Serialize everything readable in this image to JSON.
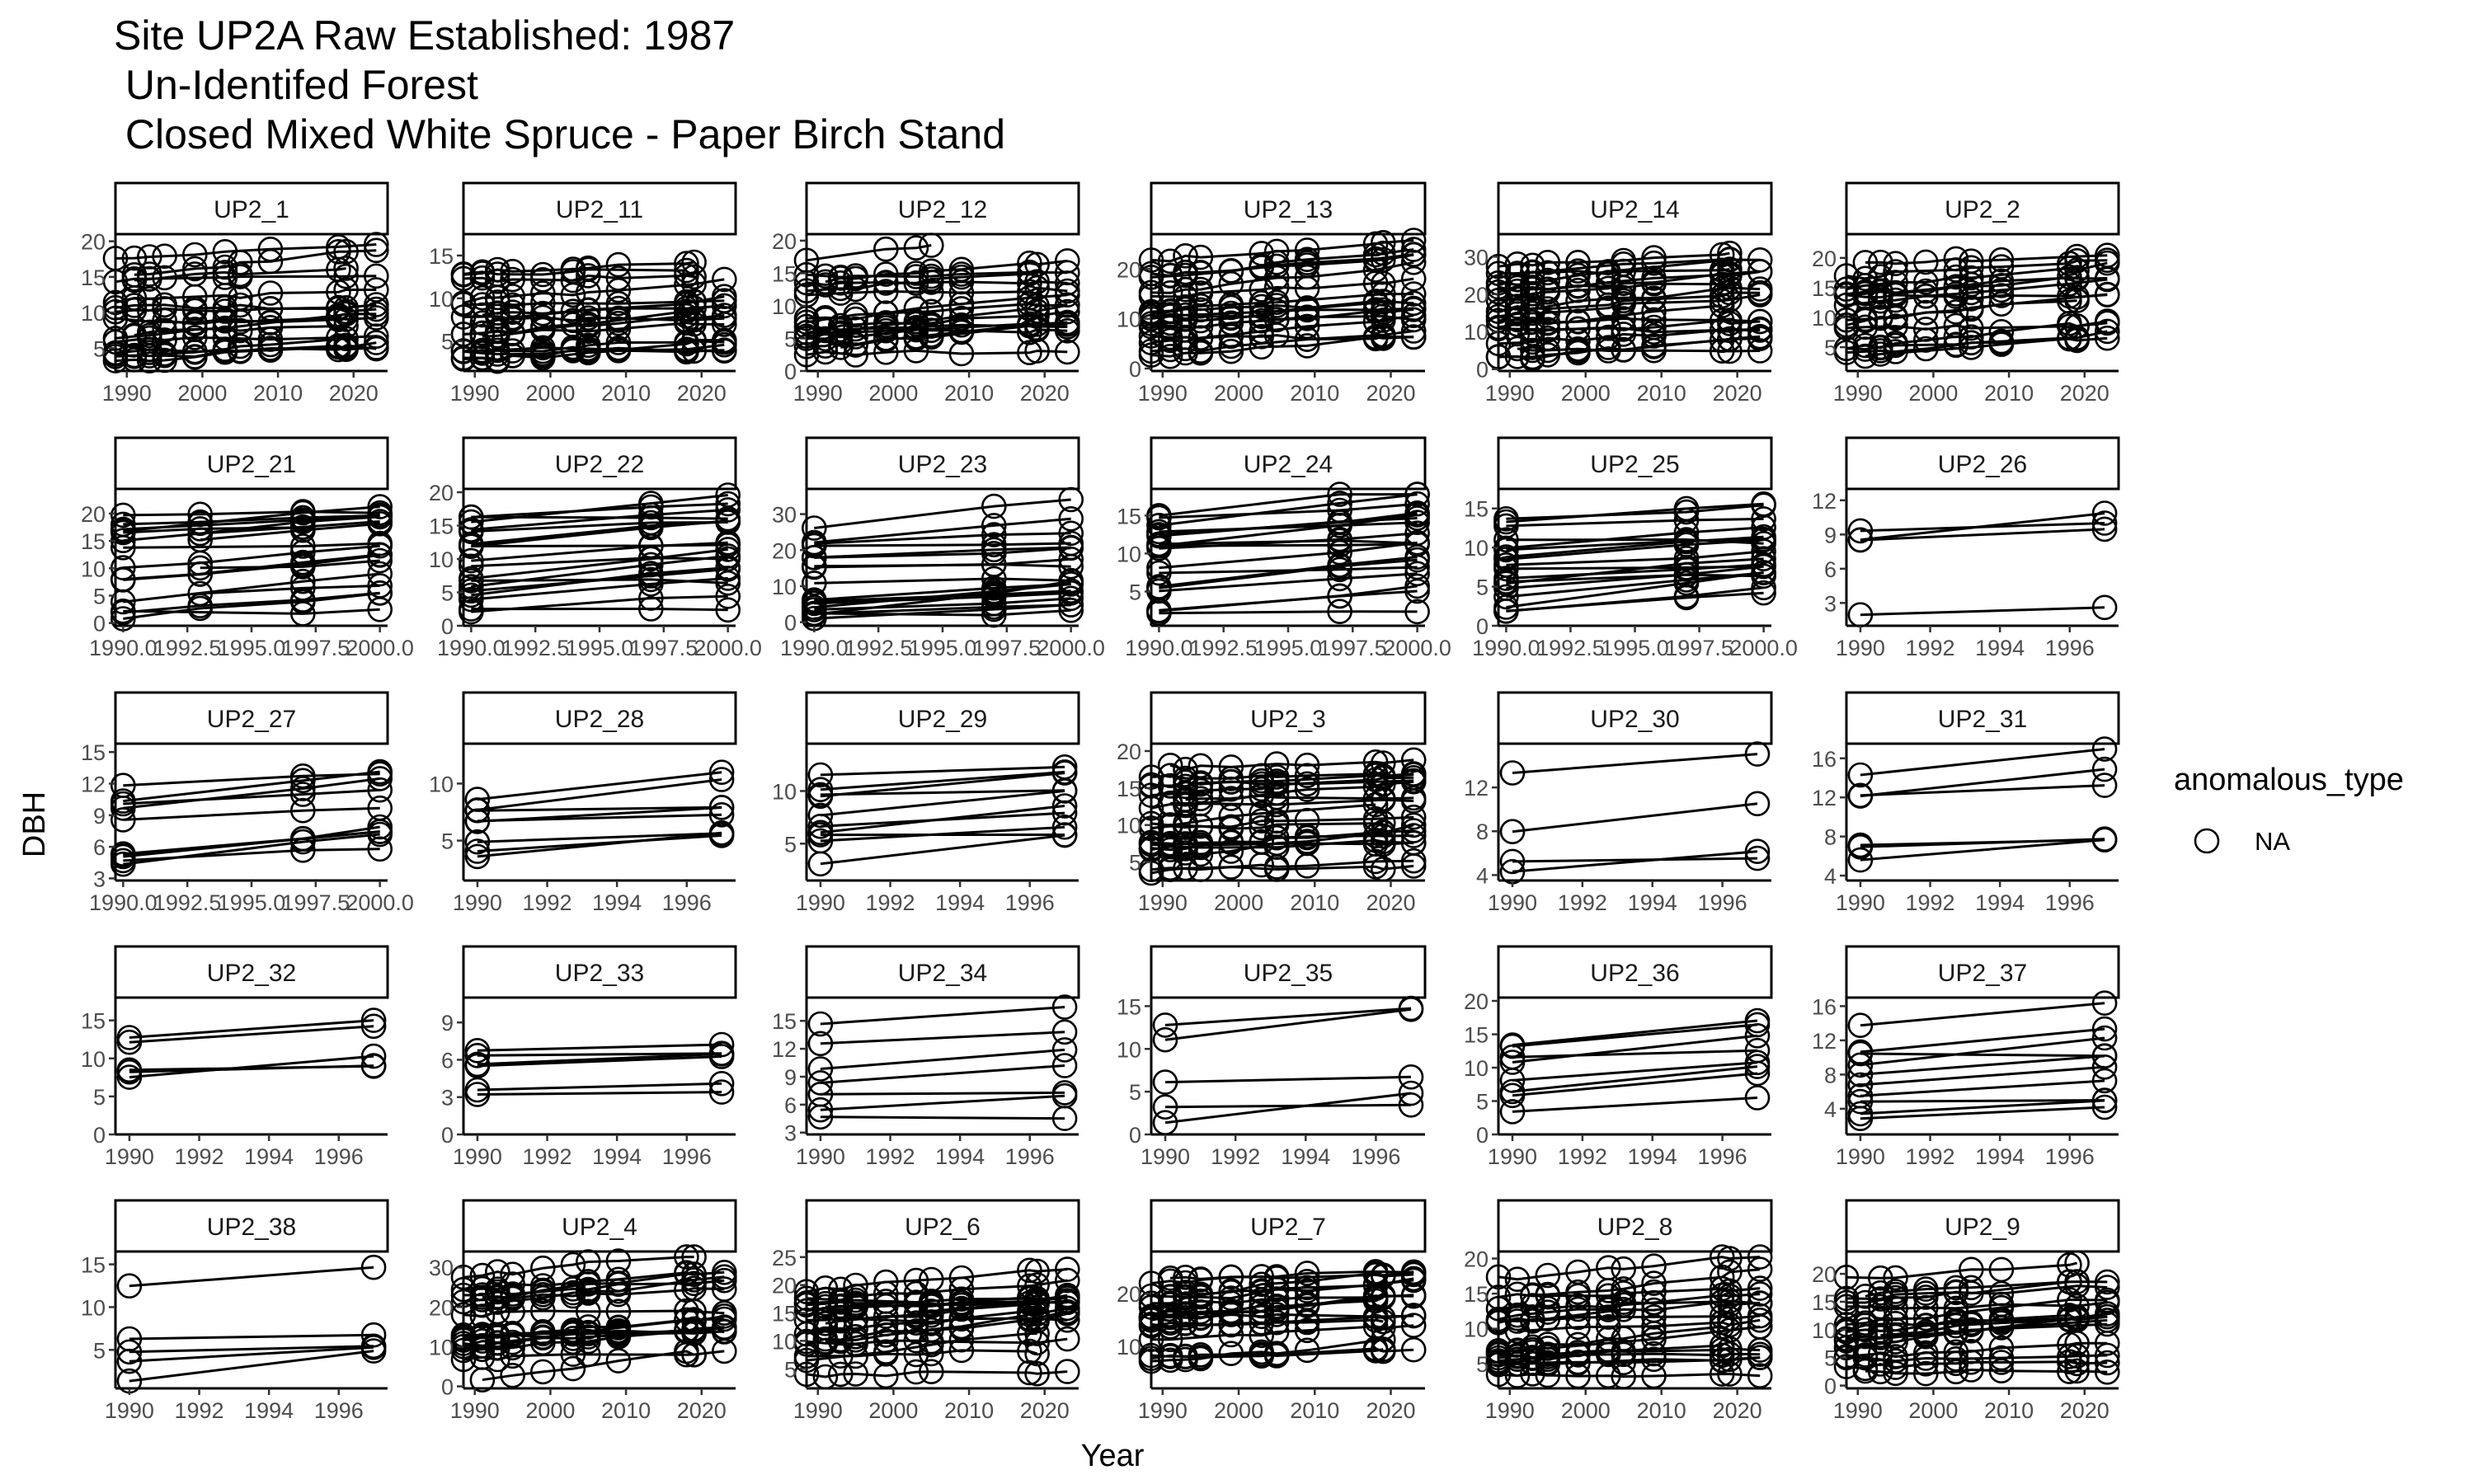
{
  "chart_data": {
    "type": "scatter",
    "title_lines": [
      "Site UP2A Raw Established: 1987",
      " Un-Identifed Forest",
      " Closed Mixed White Spruce - Paper Birch Stand"
    ],
    "xlabel": "Year",
    "ylabel": "DBH",
    "legend": {
      "title": "anomalous_type",
      "labels": [
        "NA"
      ],
      "position": "right"
    },
    "grid": false,
    "point_shape": "open-circle",
    "facets": [
      {
        "label": "UP2_1",
        "xticks": [
          "1990",
          "2000",
          "2010",
          "2020"
        ],
        "xtick_values": [
          1990,
          2000,
          2010,
          2020
        ],
        "xlim": [
          1988.5,
          2024.5
        ],
        "yticks": [
          5,
          10,
          15,
          20
        ],
        "ylim": [
          1.8,
          21
        ],
        "n_trees": 16,
        "years": [
          1988.5,
          1991,
          1993,
          1995,
          1999,
          2003,
          2005,
          2009,
          2018,
          2019,
          2023
        ]
      },
      {
        "label": "UP2_11",
        "xticks": [
          "1990",
          "2000",
          "2010",
          "2020"
        ],
        "xtick_values": [
          1990,
          2000,
          2010,
          2020
        ],
        "xlim": [
          1988.5,
          2024.5
        ],
        "yticks": [
          5,
          10,
          15
        ],
        "ylim": [
          1.5,
          17.5
        ],
        "n_trees": 16,
        "years": [
          1988.5,
          1991,
          1993,
          1995,
          1999,
          2003,
          2005,
          2009,
          2018,
          2019,
          2023
        ]
      },
      {
        "label": "UP2_12",
        "xticks": [
          "1990",
          "2000",
          "2010",
          "2020"
        ],
        "xtick_values": [
          1990,
          2000,
          2010,
          2020
        ],
        "xlim": [
          1988.5,
          2024.5
        ],
        "yticks": [
          0,
          5,
          10,
          15,
          20
        ],
        "ylim": [
          0,
          21
        ],
        "n_trees": 16,
        "years": [
          1988.5,
          1991,
          1993,
          1995,
          1999,
          2003,
          2005,
          2009,
          2018,
          2019,
          2023
        ]
      },
      {
        "label": "UP2_13",
        "xticks": [
          "1990",
          "2000",
          "2010",
          "2020"
        ],
        "xtick_values": [
          1990,
          2000,
          2010,
          2020
        ],
        "xlim": [
          1988.5,
          2024.5
        ],
        "yticks": [
          0,
          10,
          20
        ],
        "ylim": [
          -0.5,
          27
        ],
        "n_trees": 16,
        "years": [
          1988.5,
          1991,
          1993,
          1995,
          1999,
          2003,
          2005,
          2009,
          2018,
          2019,
          2023
        ]
      },
      {
        "label": "UP2_14",
        "xticks": [
          "1990",
          "2000",
          "2010",
          "2020"
        ],
        "xtick_values": [
          1990,
          2000,
          2010,
          2020
        ],
        "xlim": [
          1988.5,
          2024.5
        ],
        "yticks": [
          0,
          10,
          20,
          30
        ],
        "ylim": [
          -0.5,
          36
        ],
        "n_trees": 18,
        "years": [
          1988.5,
          1991,
          1993,
          1995,
          1999,
          2003,
          2005,
          2009,
          2018,
          2019,
          2023
        ]
      },
      {
        "label": "UP2_2",
        "xticks": [
          "1990",
          "2000",
          "2010",
          "2020"
        ],
        "xtick_values": [
          1990,
          2000,
          2010,
          2020
        ],
        "xlim": [
          1988.5,
          2024.5
        ],
        "yticks": [
          5,
          10,
          15,
          20
        ],
        "ylim": [
          1,
          24
        ],
        "n_trees": 14,
        "years": [
          1988.5,
          1991,
          1993,
          1995,
          1999,
          2003,
          2005,
          2009,
          2018,
          2019,
          2023
        ]
      },
      {
        "label": "UP2_21",
        "xticks": [
          "1990.0",
          "1992.5",
          "1995.0",
          "1997.5",
          "2000.0"
        ],
        "xtick_values": [
          1990,
          1992.5,
          1995,
          1997.5,
          2000
        ],
        "xlim": [
          1989.7,
          2000.3
        ],
        "yticks": [
          0,
          5,
          10,
          15,
          20
        ],
        "ylim": [
          -0.5,
          24.5
        ],
        "n_trees": 18,
        "years": [
          1990,
          1993,
          1997,
          2000
        ]
      },
      {
        "label": "UP2_22",
        "xticks": [
          "1990.0",
          "1992.5",
          "1995.0",
          "1997.5",
          "2000.0"
        ],
        "xtick_values": [
          1990,
          1992.5,
          1995,
          1997.5,
          2000
        ],
        "xlim": [
          1989.7,
          2000.3
        ],
        "yticks": [
          0,
          5,
          10,
          15,
          20
        ],
        "ylim": [
          0,
          20.5
        ],
        "n_trees": 18,
        "years": [
          1990,
          1997,
          2000
        ]
      },
      {
        "label": "UP2_23",
        "xticks": [
          "1990.0",
          "1992.5",
          "1995.0",
          "1997.5",
          "2000.0"
        ],
        "xtick_values": [
          1990,
          1992.5,
          1995,
          1997.5,
          2000
        ],
        "xlim": [
          1989.7,
          2000.3
        ],
        "yticks": [
          0,
          10,
          20,
          30
        ],
        "ylim": [
          -1,
          37
        ],
        "n_trees": 18,
        "years": [
          1990,
          1997,
          2000
        ]
      },
      {
        "label": "UP2_24",
        "xticks": [
          "1990.0",
          "1992.5",
          "1995.0",
          "1997.5",
          "2000.0"
        ],
        "xtick_values": [
          1990,
          1992.5,
          1995,
          1997.5,
          2000
        ],
        "xlim": [
          1989.7,
          2000.3
        ],
        "yticks": [
          5,
          10,
          15
        ],
        "ylim": [
          0.5,
          18.5
        ],
        "n_trees": 18,
        "years": [
          1990,
          1997,
          2000
        ]
      },
      {
        "label": "UP2_25",
        "xticks": [
          "1990.0",
          "1992.5",
          "1995.0",
          "1997.5",
          "2000.0"
        ],
        "xtick_values": [
          1990,
          1992.5,
          1995,
          1997.5,
          2000
        ],
        "xlim": [
          1989.7,
          2000.3
        ],
        "yticks": [
          0,
          5,
          10,
          15
        ],
        "ylim": [
          0,
          17.5
        ],
        "n_trees": 18,
        "years": [
          1990,
          1997,
          2000
        ]
      },
      {
        "label": "UP2_26",
        "xticks": [
          "1990",
          "1992",
          "1994",
          "1996"
        ],
        "xtick_values": [
          1990,
          1992,
          1994,
          1996
        ],
        "xlim": [
          1989.6,
          1997.4
        ],
        "yticks": [
          3,
          6,
          9,
          12
        ],
        "ylim": [
          1,
          13
        ],
        "n_trees": 4,
        "years": [
          1990,
          1997
        ]
      },
      {
        "label": "UP2_27",
        "xticks": [
          "1990.0",
          "1992.5",
          "1995.0",
          "1997.5",
          "2000.0"
        ],
        "xtick_values": [
          1990,
          1992.5,
          1995,
          1997.5,
          2000
        ],
        "xlim": [
          1989.7,
          2000.3
        ],
        "yticks": [
          3,
          6,
          9,
          12,
          15
        ],
        "ylim": [
          2.8,
          15.8
        ],
        "n_trees": 10,
        "years": [
          1990,
          1997,
          2000
        ]
      },
      {
        "label": "UP2_28",
        "xticks": [
          "1990",
          "1992",
          "1994",
          "1996"
        ],
        "xtick_values": [
          1990,
          1992,
          1994,
          1996
        ],
        "xlim": [
          1989.6,
          1997.4
        ],
        "yticks": [
          5,
          10
        ],
        "ylim": [
          1.5,
          13.5
        ],
        "n_trees": 8,
        "years": [
          1990,
          1997
        ]
      },
      {
        "label": "UP2_29",
        "xticks": [
          "1990",
          "1992",
          "1994",
          "1996"
        ],
        "xtick_values": [
          1990,
          1992,
          1994,
          1996
        ],
        "xlim": [
          1989.6,
          1997.4
        ],
        "yticks": [
          5,
          10
        ],
        "ylim": [
          1.5,
          14.5
        ],
        "n_trees": 10,
        "years": [
          1990,
          1997
        ]
      },
      {
        "label": "UP2_3",
        "xticks": [
          "1990",
          "2000",
          "2010",
          "2020"
        ],
        "xtick_values": [
          1990,
          2000,
          2010,
          2020
        ],
        "xlim": [
          1988.5,
          2024.5
        ],
        "yticks": [
          5,
          10,
          15,
          20
        ],
        "ylim": [
          2.5,
          21
        ],
        "n_trees": 18,
        "years": [
          1988.5,
          1991,
          1993,
          1995,
          1999,
          2003,
          2005,
          2009,
          2018,
          2019,
          2023
        ]
      },
      {
        "label": "UP2_30",
        "xticks": [
          "1990",
          "1992",
          "1994",
          "1996"
        ],
        "xtick_values": [
          1990,
          1992,
          1994,
          1996
        ],
        "xlim": [
          1989.6,
          1997.4
        ],
        "yticks": [
          4,
          8,
          12
        ],
        "ylim": [
          3.5,
          16
        ],
        "n_trees": 4,
        "years": [
          1990,
          1997
        ]
      },
      {
        "label": "UP2_31",
        "xticks": [
          "1990",
          "1992",
          "1994",
          "1996"
        ],
        "xtick_values": [
          1990,
          1992,
          1994,
          1996
        ],
        "xlim": [
          1989.6,
          1997.4
        ],
        "yticks": [
          4,
          8,
          12,
          16
        ],
        "ylim": [
          3.5,
          17.5
        ],
        "n_trees": 6,
        "years": [
          1990,
          1997
        ]
      },
      {
        "label": "UP2_32",
        "xticks": [
          "1990",
          "1992",
          "1994",
          "1996"
        ],
        "xtick_values": [
          1990,
          1992,
          1994,
          1996
        ],
        "xlim": [
          1989.6,
          1997.4
        ],
        "yticks": [
          0,
          5,
          10,
          15
        ],
        "ylim": [
          0,
          18
        ],
        "n_trees": 5,
        "years": [
          1990,
          1997
        ]
      },
      {
        "label": "UP2_33",
        "xticks": [
          "1990",
          "1992",
          "1994",
          "1996"
        ],
        "xtick_values": [
          1990,
          1992,
          1994,
          1996
        ],
        "xlim": [
          1989.6,
          1997.4
        ],
        "yticks": [
          0,
          3,
          6,
          9
        ],
        "ylim": [
          0,
          11
        ],
        "n_trees": 6,
        "years": [
          1990,
          1997
        ]
      },
      {
        "label": "UP2_34",
        "xticks": [
          "1990",
          "1992",
          "1994",
          "1996"
        ],
        "xtick_values": [
          1990,
          1992,
          1994,
          1996
        ],
        "xlim": [
          1989.6,
          1997.4
        ],
        "yticks": [
          3,
          6,
          9,
          12,
          15
        ],
        "ylim": [
          2.8,
          17.5
        ],
        "n_trees": 7,
        "years": [
          1990,
          1997
        ]
      },
      {
        "label": "UP2_35",
        "xticks": [
          "1990",
          "1992",
          "1994",
          "1996"
        ],
        "xtick_values": [
          1990,
          1992,
          1994,
          1996
        ],
        "xlim": [
          1989.6,
          1997.4
        ],
        "yticks": [
          0,
          5,
          10,
          15
        ],
        "ylim": [
          0,
          16
        ],
        "n_trees": 5,
        "years": [
          1990,
          1997
        ]
      },
      {
        "label": "UP2_36",
        "xticks": [
          "1990",
          "1992",
          "1994",
          "1996"
        ],
        "xtick_values": [
          1990,
          1992,
          1994,
          1996
        ],
        "xlim": [
          1989.6,
          1997.4
        ],
        "yticks": [
          0,
          5,
          10,
          15,
          20
        ],
        "ylim": [
          0,
          20.5
        ],
        "n_trees": 8,
        "years": [
          1990,
          1997
        ]
      },
      {
        "label": "UP2_37",
        "xticks": [
          "1990",
          "1992",
          "1994",
          "1996"
        ],
        "xtick_values": [
          1990,
          1992,
          1994,
          1996
        ],
        "xlim": [
          1989.6,
          1997.4
        ],
        "yticks": [
          4,
          8,
          12,
          16
        ],
        "ylim": [
          1,
          17
        ],
        "n_trees": 10,
        "years": [
          1990,
          1997
        ]
      },
      {
        "label": "UP2_38",
        "xticks": [
          "1990",
          "1992",
          "1994",
          "1996"
        ],
        "xtick_values": [
          1990,
          1992,
          1994,
          1996
        ],
        "xlim": [
          1989.6,
          1997.4
        ],
        "yticks": [
          5,
          10,
          15
        ],
        "ylim": [
          0.5,
          16.5
        ],
        "n_trees": 5,
        "years": [
          1990,
          1997
        ]
      },
      {
        "label": "UP2_4",
        "xticks": [
          "1990",
          "2000",
          "2010",
          "2020"
        ],
        "xtick_values": [
          1990,
          2000,
          2010,
          2020
        ],
        "xlim": [
          1988.5,
          2024.5
        ],
        "yticks": [
          0,
          10,
          20,
          30
        ],
        "ylim": [
          -0.5,
          34
        ],
        "n_trees": 16,
        "years": [
          1988.5,
          1991,
          1993,
          1995,
          1999,
          2003,
          2005,
          2009,
          2018,
          2019,
          2023
        ]
      },
      {
        "label": "UP2_6",
        "xticks": [
          "1990",
          "2000",
          "2010",
          "2020"
        ],
        "xtick_values": [
          1990,
          2000,
          2010,
          2020
        ],
        "xlim": [
          1988.5,
          2024.5
        ],
        "yticks": [
          5,
          10,
          15,
          20,
          25
        ],
        "ylim": [
          1.5,
          26
        ],
        "n_trees": 16,
        "years": [
          1988.5,
          1991,
          1993,
          1995,
          1999,
          2003,
          2005,
          2009,
          2018,
          2019,
          2023
        ]
      },
      {
        "label": "UP2_7",
        "xticks": [
          "1990",
          "2000",
          "2010",
          "2020"
        ],
        "xtick_values": [
          1990,
          2000,
          2010,
          2020
        ],
        "xlim": [
          1988.5,
          2024.5
        ],
        "yticks": [
          10,
          20
        ],
        "ylim": [
          2,
          28
        ],
        "n_trees": 16,
        "years": [
          1988.5,
          1991,
          1993,
          1995,
          1999,
          2003,
          2005,
          2009,
          2018,
          2019,
          2023
        ]
      },
      {
        "label": "UP2_8",
        "xticks": [
          "1990",
          "2000",
          "2010",
          "2020"
        ],
        "xtick_values": [
          1990,
          2000,
          2010,
          2020
        ],
        "xlim": [
          1988.5,
          2024.5
        ],
        "yticks": [
          5,
          10,
          15,
          20
        ],
        "ylim": [
          1.5,
          21
        ],
        "n_trees": 16,
        "years": [
          1988.5,
          1991,
          1993,
          1995,
          1999,
          2003,
          2005,
          2009,
          2018,
          2019,
          2023
        ]
      },
      {
        "label": "UP2_9",
        "xticks": [
          "1990",
          "2000",
          "2010",
          "2020"
        ],
        "xtick_values": [
          1990,
          2000,
          2010,
          2020
        ],
        "xlim": [
          1988.5,
          2024.5
        ],
        "yticks": [
          0,
          5,
          10,
          15,
          20
        ],
        "ylim": [
          -0.5,
          24
        ],
        "n_trees": 16,
        "years": [
          1988.5,
          1991,
          1993,
          1995,
          1999,
          2003,
          2005,
          2009,
          2018,
          2019,
          2023
        ]
      }
    ]
  }
}
